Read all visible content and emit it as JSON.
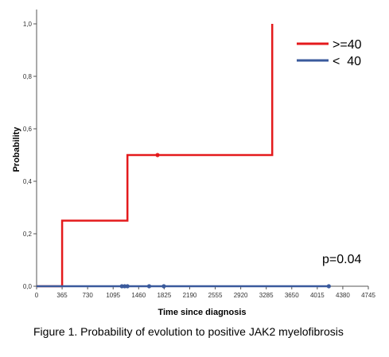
{
  "chart_data": {
    "type": "line",
    "title": "",
    "xlabel": "Time since diagnosis",
    "ylabel": "Probability",
    "xlim": [
      0,
      4745
    ],
    "ylim": [
      0,
      1.0
    ],
    "x_ticks": [
      "0",
      "365",
      "730",
      "1095",
      "1460",
      "1825",
      "2190",
      "2555",
      "2920",
      "3285",
      "3650",
      "4015",
      "4380",
      "4745"
    ],
    "y_ticks": [
      "0,0",
      "0,2",
      "0,4",
      "0,6",
      "0,8",
      "1,0"
    ],
    "grid": false,
    "legend_position": "top-right",
    "series": [
      {
        "name": ">=40",
        "color": "#e41a1c",
        "step": true,
        "points": [
          [
            0,
            0.0
          ],
          [
            365,
            0.0
          ],
          [
            365,
            0.25
          ],
          [
            1300,
            0.25
          ],
          [
            1300,
            0.5
          ],
          [
            3370,
            0.5
          ],
          [
            3370,
            1.0
          ]
        ],
        "censored": [
          [
            1730,
            0.5
          ]
        ]
      },
      {
        "name": "<  40",
        "color": "#3a5a9c",
        "step": true,
        "points": [
          [
            0,
            0.0
          ],
          [
            4180,
            0.0
          ]
        ],
        "censored": [
          [
            1220,
            0.0
          ],
          [
            1260,
            0.0
          ],
          [
            1300,
            0.0
          ],
          [
            1610,
            0.0
          ],
          [
            1820,
            0.0
          ],
          [
            4180,
            0.0
          ]
        ]
      }
    ],
    "annotations": [
      {
        "text": "p=0.04"
      }
    ]
  },
  "caption": "Figure 1. Probability of evolution to positive JAK2 myelofibrosis"
}
